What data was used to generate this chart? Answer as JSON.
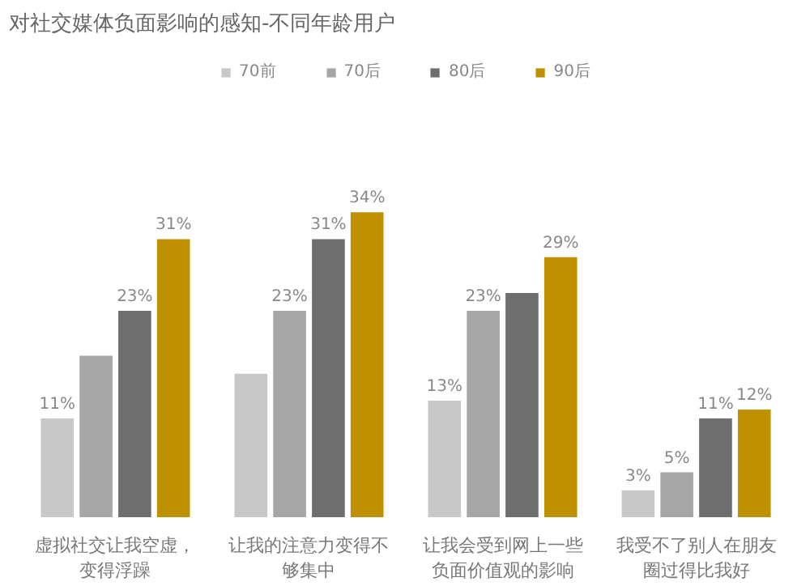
{
  "chart_data": {
    "type": "bar",
    "title": "对社交媒体负面影响的感知-不同年龄用户",
    "categories": [
      "虚拟社交让我空虚，变得浮躁",
      "让我的注意力变得不够集中",
      "让我会受到网上一些负面价值观的影响",
      "我受不了别人在朋友圈过得比我好"
    ],
    "series": [
      {
        "name": "70前",
        "color": "#c8c8c8",
        "values": [
          11,
          16,
          13,
          3
        ],
        "value_labels": [
          "11%",
          null,
          "13%",
          "3%"
        ]
      },
      {
        "name": "70后",
        "color": "#a6a6a6",
        "values": [
          18,
          23,
          23,
          5
        ],
        "value_labels": [
          null,
          "23%",
          "23%",
          "5%"
        ]
      },
      {
        "name": "80后",
        "color": "#6e6e6e",
        "values": [
          23,
          31,
          25,
          11
        ],
        "value_labels": [
          "23%",
          "31%",
          null,
          "11%"
        ]
      },
      {
        "name": "90后",
        "color": "#bf9000",
        "values": [
          31,
          34,
          29,
          12
        ],
        "value_labels": [
          "31%",
          "34%",
          "29%",
          "12%"
        ]
      }
    ],
    "legend": "top",
    "grid": false
  }
}
